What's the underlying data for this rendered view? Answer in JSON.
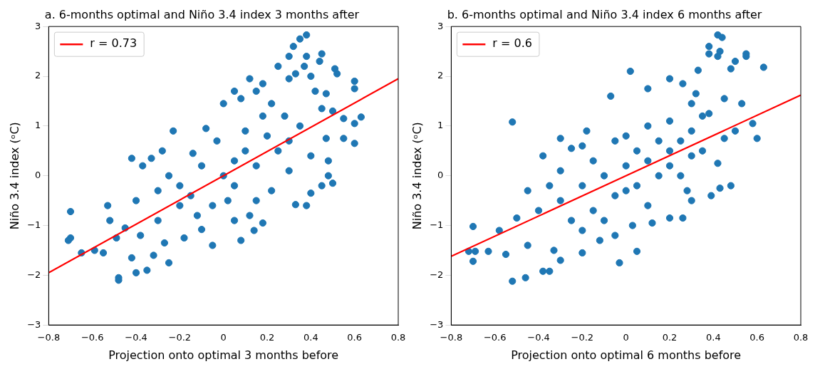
{
  "chart_data": [
    {
      "type": "scatter",
      "title": "a. 6-months optimal and Niño 3.4 index 3 months after",
      "xlabel": "Projection onto optimal 3 months before",
      "ylabel": "Niño 3.4 index (ᵒC)",
      "xlim": [
        -0.8,
        0.8
      ],
      "ylim": [
        -3,
        3
      ],
      "xticks": [
        -0.8,
        -0.6,
        -0.4,
        -0.2,
        0.0,
        0.2,
        0.4,
        0.6,
        0.8
      ],
      "yticks": [
        -3,
        -2,
        -1,
        0,
        1,
        2,
        3
      ],
      "grid": false,
      "legend": "top left",
      "series": [
        {
          "marker": "circle",
          "color": "#1f77b4",
          "x": [
            0.38,
            0.35,
            0.32,
            0.44,
            0.38,
            0.3,
            0.45,
            0.37,
            0.25,
            0.51,
            0.33,
            0.52,
            0.4,
            0.6,
            0.3,
            0.6,
            0.42,
            0.47,
            0.12,
            0.18,
            0.05,
            0.0,
            0.08,
            0.15,
            0.22,
            0.45,
            0.5,
            0.55,
            0.63,
            0.6,
            0.55,
            0.6,
            0.47,
            0.48,
            0.4,
            0.38,
            0.33,
            0.48,
            0.5,
            0.45,
            -0.23,
            -0.28,
            -0.33,
            -0.08,
            -0.03,
            -0.14,
            -0.42,
            -0.37,
            -0.7,
            -0.7,
            -0.71,
            -0.65,
            -0.59,
            -0.55,
            -0.49,
            -0.45,
            -0.53,
            -0.52,
            -0.48,
            -0.48,
            -0.35,
            -0.4,
            -0.42,
            -0.32,
            -0.25,
            -0.27,
            -0.18,
            -0.05,
            -0.1,
            0.05,
            0.08,
            0.14,
            0.18,
            0.12,
            0.02,
            -0.12,
            -0.2,
            -0.3,
            -0.38,
            -0.4,
            -0.3,
            -0.2,
            -0.1,
            -0.15,
            0.0,
            0.05,
            0.1,
            0.15,
            0.2,
            0.25,
            0.3,
            0.35,
            0.3,
            0.1,
            0.22,
            0.15,
            -0.05,
            0.05,
            -0.25,
            0.4,
            0.28,
            0.18
          ],
          "values": [
            2.83,
            2.75,
            2.6,
            2.3,
            2.4,
            2.4,
            2.45,
            2.2,
            2.2,
            2.15,
            2.05,
            2.05,
            2.0,
            1.9,
            1.95,
            1.75,
            1.7,
            1.65,
            1.95,
            1.85,
            1.7,
            1.45,
            1.55,
            1.7,
            1.45,
            1.35,
            1.3,
            1.15,
            1.18,
            1.05,
            0.75,
            0.65,
            0.75,
            0.3,
            -0.35,
            -0.6,
            -0.58,
            0.0,
            -0.15,
            -0.2,
            0.9,
            0.5,
            0.35,
            0.95,
            0.7,
            0.45,
            0.35,
            0.2,
            -0.72,
            -1.25,
            -1.3,
            -1.55,
            -1.5,
            -1.55,
            -1.25,
            -1.05,
            -0.6,
            -0.9,
            -2.05,
            -2.1,
            -1.9,
            -1.95,
            -1.65,
            -1.6,
            -1.75,
            -1.35,
            -1.25,
            -1.4,
            -1.08,
            -0.9,
            -1.3,
            -1.1,
            -0.95,
            -0.8,
            -0.5,
            -0.8,
            -0.6,
            -0.9,
            -1.2,
            -0.5,
            -0.3,
            -0.2,
            0.2,
            -0.4,
            0.0,
            -0.2,
            0.5,
            0.2,
            0.8,
            0.5,
            0.1,
            1.0,
            0.7,
            0.9,
            -0.3,
            -0.5,
            -0.6,
            0.3,
            0.0,
            0.4,
            1.2,
            1.2
          ]
        },
        {
          "type": "line",
          "marker": "none",
          "name": "r = 0.73",
          "color": "#ff0000",
          "x": [
            -0.8,
            0.8
          ],
          "values": [
            -1.95,
            1.95
          ]
        }
      ]
    },
    {
      "type": "scatter",
      "title": "b. 6-months optimal and Niño 3.4 index 6 months after",
      "xlabel": "Projection onto optimal 6 months before",
      "ylabel": "Niño 3.4 index (ᵒC)",
      "xlim": [
        -0.8,
        0.8
      ],
      "ylim": [
        -3,
        3
      ],
      "xticks": [
        -0.8,
        -0.6,
        -0.4,
        -0.2,
        0.0,
        0.2,
        0.4,
        0.6,
        0.8
      ],
      "yticks": [
        -3,
        -2,
        -1,
        0,
        1,
        2,
        3
      ],
      "grid": false,
      "legend": "top left",
      "series": [
        {
          "marker": "circle",
          "color": "#1f77b4",
          "x": [
            0.42,
            0.44,
            0.43,
            0.38,
            0.38,
            0.33,
            0.42,
            0.55,
            0.55,
            0.5,
            0.48,
            0.63,
            0.02,
            0.2,
            0.26,
            0.1,
            -0.07,
            0.32,
            0.3,
            0.45,
            0.38,
            0.53,
            0.58,
            0.6,
            0.5,
            -0.52,
            -0.3,
            -0.25,
            -0.38,
            -0.2,
            -0.05,
            -0.18,
            -0.7,
            -0.72,
            -0.7,
            -0.69,
            -0.63,
            -0.55,
            -0.58,
            -0.5,
            -0.52,
            -0.46,
            -0.35,
            -0.38,
            -0.3,
            -0.33,
            -0.45,
            -0.2,
            -0.12,
            -0.03,
            0.05,
            -0.05,
            0.03,
            0.12,
            0.2,
            0.26,
            0.3,
            0.39,
            0.43,
            0.48,
            0.28,
            0.42,
            0.35,
            0.45,
            0.2,
            -0.4,
            -0.3,
            -0.2,
            -0.1,
            0.0,
            0.1,
            0.2,
            0.3,
            -0.25,
            -0.15,
            -0.05,
            0.05,
            0.15,
            0.25,
            -0.3,
            -0.15,
            0.0,
            0.1,
            0.2,
            0.3,
            -0.1,
            0.1,
            0.0,
            -0.35,
            0.15,
            -0.45,
            -0.2,
            0.05,
            0.35,
            0.25
          ],
          "values": [
            2.83,
            2.78,
            2.5,
            2.6,
            2.45,
            2.12,
            2.4,
            2.45,
            2.4,
            2.3,
            2.15,
            2.18,
            2.1,
            1.95,
            1.85,
            1.75,
            1.6,
            1.65,
            1.45,
            1.55,
            1.25,
            1.45,
            1.05,
            0.75,
            0.9,
            1.08,
            0.75,
            0.55,
            0.4,
            0.6,
            0.7,
            0.9,
            -1.02,
            -1.52,
            -1.72,
            -1.52,
            -1.52,
            -1.58,
            -1.1,
            -0.85,
            -2.12,
            -2.05,
            -1.92,
            -1.92,
            -1.7,
            -1.5,
            -1.4,
            -1.55,
            -1.3,
            -1.75,
            -1.52,
            -1.2,
            -1.0,
            -0.95,
            -0.85,
            -0.85,
            -0.5,
            -0.4,
            -0.25,
            -0.2,
            -0.3,
            0.25,
            0.5,
            0.75,
            0.5,
            -0.7,
            -0.5,
            -0.2,
            0.0,
            0.2,
            0.3,
            0.2,
            0.4,
            -0.9,
            -0.7,
            -0.4,
            -0.2,
            0.0,
            0.0,
            0.1,
            0.3,
            0.8,
            1.0,
            1.1,
            0.9,
            -0.9,
            -0.6,
            -0.3,
            -0.2,
            0.7,
            -0.3,
            -1.1,
            0.5,
            1.2,
            0.7
          ]
        },
        {
          "type": "line",
          "marker": "none",
          "name": "r = 0.6",
          "color": "#ff0000",
          "x": [
            -0.8,
            0.8
          ],
          "values": [
            -1.62,
            1.62
          ]
        }
      ]
    }
  ]
}
